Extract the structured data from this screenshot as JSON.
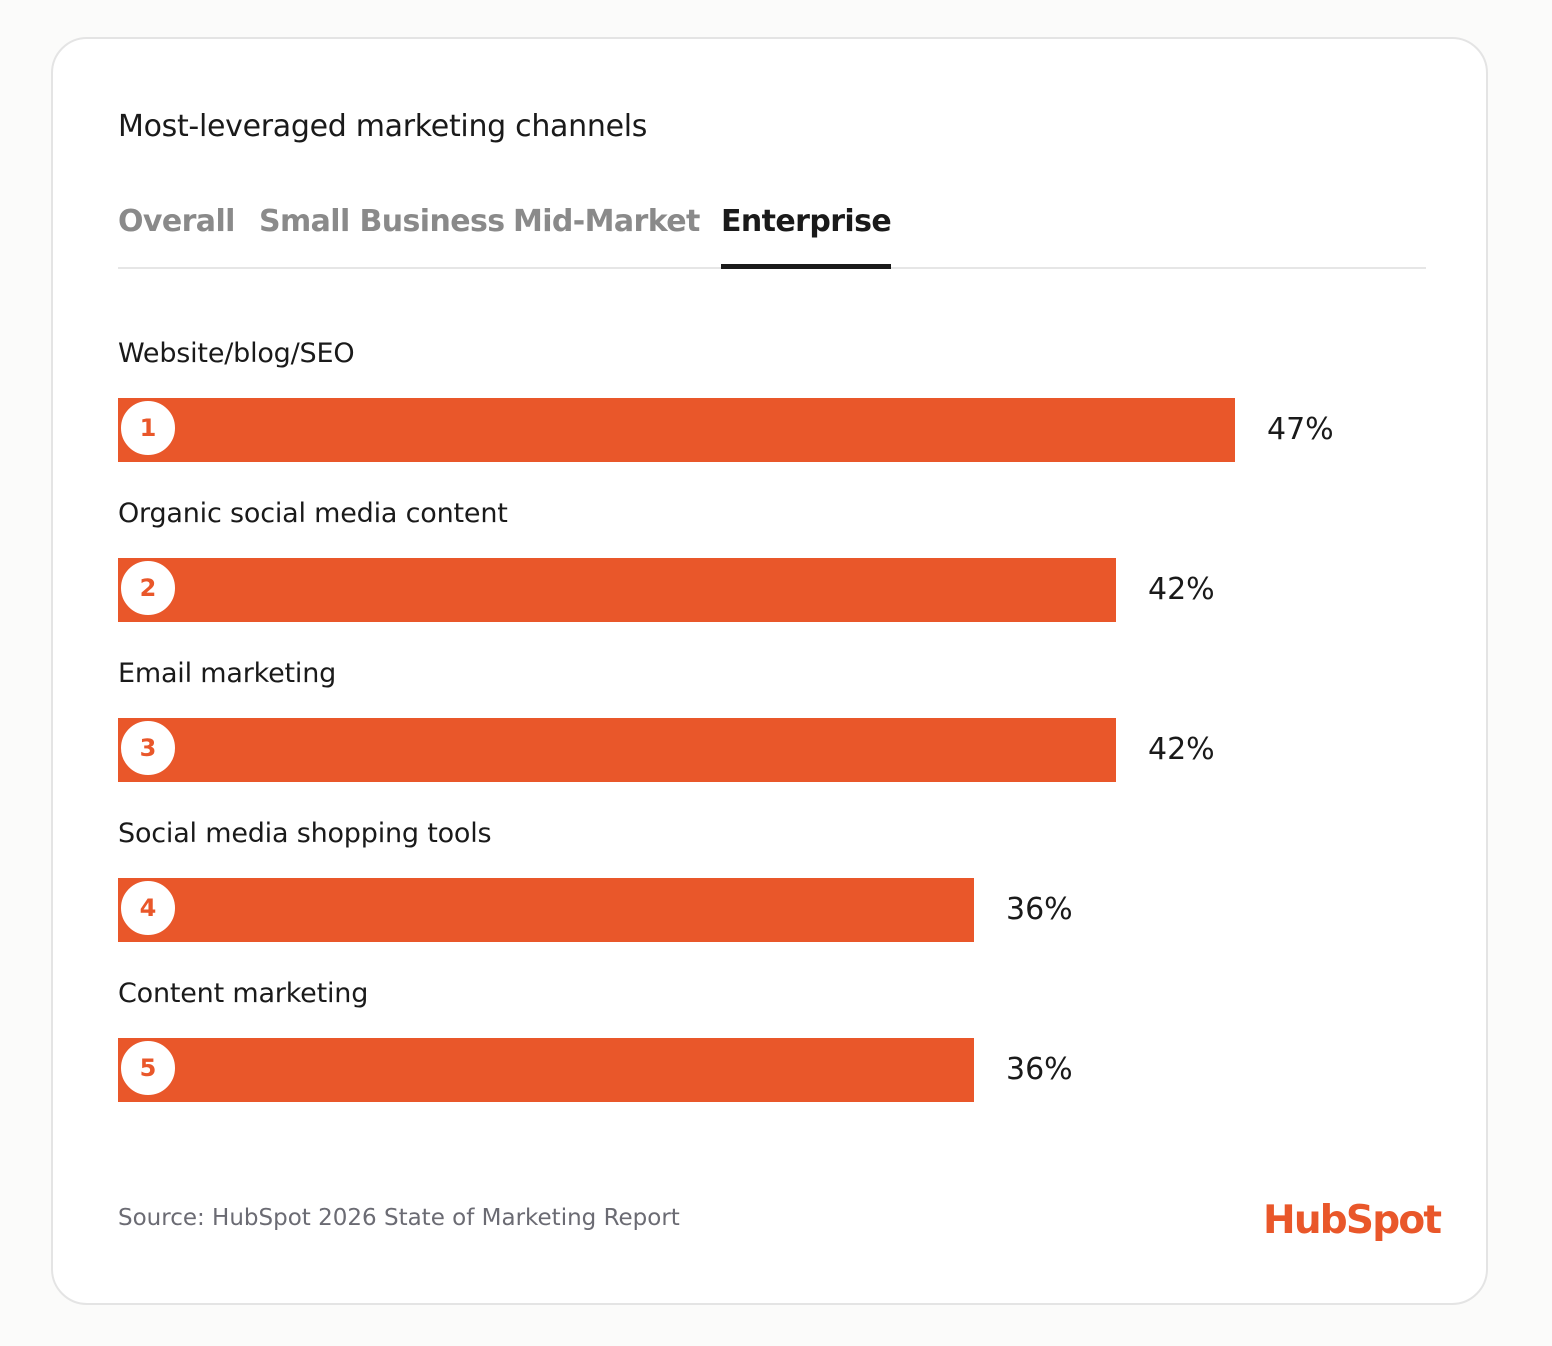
{
  "card": {
    "title": "Most-leveraged marketing channels"
  },
  "tabs": [
    {
      "label": "Overall",
      "active": false
    },
    {
      "label": "Small Business",
      "active": false
    },
    {
      "label": "Mid-Market",
      "active": false
    },
    {
      "label": "Enterprise",
      "active": true
    }
  ],
  "colors": {
    "bar": "#e9572a",
    "text": "#1a1a1a",
    "tab_inactive": "#8a8a8a",
    "source_text": "#6b6b73",
    "brand": "#e9572a"
  },
  "chart_data": {
    "type": "bar",
    "orientation": "horizontal",
    "title": "Most-leveraged marketing channels",
    "categories": [
      "Website/blog/SEO",
      "Organic social media content",
      "Email marketing",
      "Social media shopping tools",
      "Content marketing"
    ],
    "ranks": [
      "1",
      "2",
      "3",
      "4",
      "5"
    ],
    "values": [
      47,
      42,
      42,
      36,
      36
    ],
    "value_labels": [
      "47%",
      "42%",
      "42%",
      "36%",
      "36%"
    ],
    "unit": "%",
    "xlim": [
      0,
      55
    ],
    "grid": false,
    "legend": "none"
  },
  "footer": {
    "source": "Source: HubSpot 2026 State of Marketing Report",
    "logo_text": "HubSpot"
  }
}
